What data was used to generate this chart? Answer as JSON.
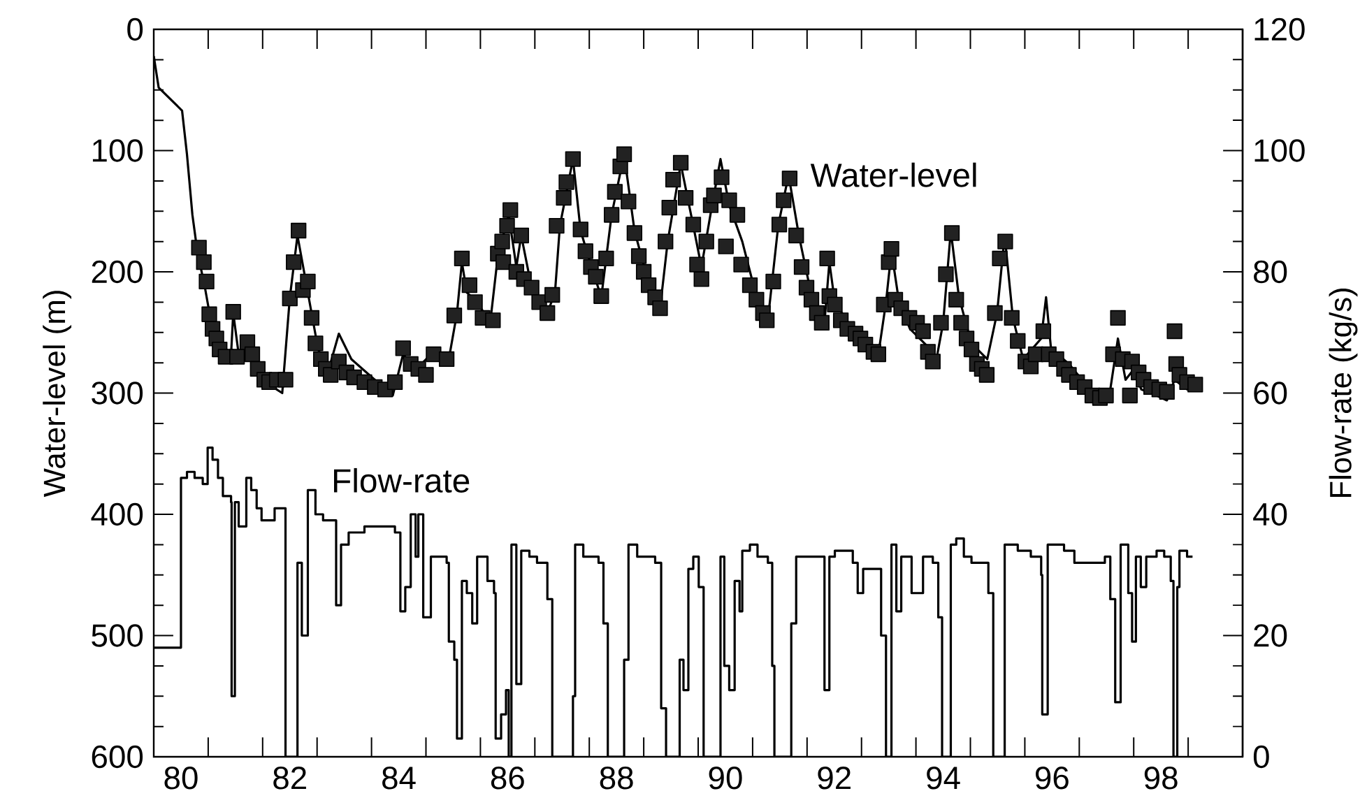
{
  "chart_data": {
    "type": "line",
    "xlabel": null,
    "ylabel": "Water-level (m)",
    "y2label": "Flow-rate (kg/s)",
    "annotations": [
      "Water-level",
      "Flow-rate"
    ],
    "xlim": [
      80,
      100
    ],
    "xticks": [
      {
        "value": 80.5,
        "label": "80"
      },
      {
        "value": 82.5,
        "label": "82"
      },
      {
        "value": 84.5,
        "label": "84"
      },
      {
        "value": 86.5,
        "label": "86"
      },
      {
        "value": 88.5,
        "label": "88"
      },
      {
        "value": 90.5,
        "label": "90"
      },
      {
        "value": 92.5,
        "label": "92"
      },
      {
        "value": 94.5,
        "label": "94"
      },
      {
        "value": 96.5,
        "label": "96"
      },
      {
        "value": 98.5,
        "label": "98"
      },
      {
        "value": 80,
        "label": null
      },
      {
        "value": 81,
        "label": null
      },
      {
        "value": 82,
        "label": null
      },
      {
        "value": 83,
        "label": null
      },
      {
        "value": 84,
        "label": null
      },
      {
        "value": 85,
        "label": null
      },
      {
        "value": 86,
        "label": null
      },
      {
        "value": 87,
        "label": null
      },
      {
        "value": 88,
        "label": null
      },
      {
        "value": 89,
        "label": null
      },
      {
        "value": 90,
        "label": null
      },
      {
        "value": 91,
        "label": null
      },
      {
        "value": 92,
        "label": null
      },
      {
        "value": 93,
        "label": null
      },
      {
        "value": 94,
        "label": null
      },
      {
        "value": 95,
        "label": null
      },
      {
        "value": 96,
        "label": null
      },
      {
        "value": 97,
        "label": null
      },
      {
        "value": 98,
        "label": null
      },
      {
        "value": 99,
        "label": null
      },
      {
        "value": 100,
        "label": null
      }
    ],
    "ylim": [
      600,
      0
    ],
    "yticks": [
      0,
      100,
      200,
      300,
      400,
      500,
      600
    ],
    "y2lim": [
      0,
      120
    ],
    "y2ticks": [
      0,
      20,
      40,
      60,
      80,
      100,
      120
    ],
    "series": [
      {
        "color": "#000000",
        "x": [
          80.0,
          80.09,
          80.52,
          80.61,
          80.71,
          80.8,
          80.94,
          81.04,
          81.23,
          81.42,
          81.46,
          81.56,
          81.79,
          81.98,
          82.36,
          82.5,
          82.64,
          82.83,
          83.02,
          83.21,
          83.4,
          83.63,
          84.06,
          84.39,
          84.58,
          84.81,
          85.09,
          85.42,
          85.57,
          85.66,
          85.75,
          85.94,
          86.18,
          86.32,
          86.52,
          86.66,
          86.75,
          86.94,
          87.23,
          87.37,
          87.46,
          87.7,
          87.84,
          87.98,
          88.22,
          88.41,
          88.64,
          88.83,
          89.11,
          89.3,
          89.44,
          89.68,
          89.91,
          90.06,
          90.24,
          90.41,
          90.57,
          90.81,
          91.05,
          91.28,
          91.47,
          91.66,
          91.85,
          92.13,
          92.32,
          92.41,
          92.51,
          92.89,
          93.31,
          93.45,
          93.55,
          93.69,
          93.89,
          94.27,
          94.36,
          94.5,
          94.64,
          94.79,
          95.02,
          95.31,
          95.49,
          95.63,
          95.78,
          95.97,
          96.3,
          96.39,
          96.48,
          96.81,
          97.29,
          97.57,
          97.71,
          97.85,
          97.99,
          98.14,
          98.42,
          98.61,
          98.75,
          98.98,
          99.17
        ],
        "values": [
          22,
          48,
          67,
          103,
          153,
          183,
          213,
          238,
          259,
          268,
          234,
          268,
          272,
          289,
          300,
          221,
          170,
          217,
          264,
          281,
          251,
          272,
          289,
          302,
          268,
          281,
          268,
          272,
          234,
          192,
          217,
          225,
          242,
          187,
          153,
          196,
          170,
          213,
          234,
          217,
          162,
          107,
          166,
          187,
          221,
          153,
          103,
          166,
          213,
          230,
          175,
          111,
          162,
          196,
          149,
          107,
          145,
          175,
          217,
          240,
          162,
          120,
          170,
          230,
          242,
          192,
          225,
          251,
          268,
          225,
          183,
          225,
          247,
          264,
          276,
          242,
          166,
          221,
          259,
          272,
          234,
          170,
          238,
          272,
          255,
          221,
          263,
          276,
          302,
          297,
          255,
          289,
          281,
          297,
          302,
          306,
          289,
          297,
          295
        ]
      },
      {
        "type": "scatter",
        "color": "#222222",
        "marker": "square",
        "x": [
          80.83,
          80.92,
          80.97,
          81.02,
          81.08,
          81.15,
          81.21,
          81.32,
          81.46,
          81.53,
          81.72,
          81.81,
          81.91,
          82.03,
          82.12,
          82.26,
          82.42,
          82.5,
          82.57,
          82.66,
          82.74,
          82.83,
          82.9,
          82.97,
          83.07,
          83.16,
          83.25,
          83.4,
          83.54,
          83.68,
          83.87,
          84.06,
          84.25,
          84.43,
          84.58,
          84.72,
          84.86,
          85.0,
          85.14,
          85.38,
          85.52,
          85.66,
          85.8,
          85.9,
          86.04,
          86.23,
          86.32,
          86.4,
          86.42,
          86.49,
          86.55,
          86.66,
          86.75,
          86.8,
          86.94,
          87.08,
          87.23,
          87.32,
          87.4,
          87.53,
          87.58,
          87.7,
          87.84,
          87.93,
          88.03,
          88.12,
          88.22,
          88.31,
          88.41,
          88.47,
          88.57,
          88.64,
          88.72,
          88.83,
          88.91,
          89.0,
          89.09,
          89.21,
          89.3,
          89.4,
          89.47,
          89.54,
          89.68,
          89.77,
          89.91,
          89.98,
          90.06,
          90.15,
          90.23,
          90.29,
          90.43,
          90.51,
          90.57,
          90.72,
          90.79,
          90.95,
          91.07,
          91.19,
          91.26,
          91.38,
          91.49,
          91.57,
          91.68,
          91.8,
          91.9,
          91.99,
          92.08,
          92.18,
          92.27,
          92.37,
          92.41,
          92.51,
          92.62,
          92.74,
          92.89,
          92.98,
          93.07,
          93.22,
          93.31,
          93.41,
          93.5,
          93.55,
          93.62,
          93.73,
          93.88,
          94.02,
          94.13,
          94.22,
          94.31,
          94.46,
          94.55,
          94.66,
          94.74,
          94.83,
          94.93,
          95.02,
          95.12,
          95.21,
          95.3,
          95.45,
          95.54,
          95.64,
          95.76,
          95.87,
          96.01,
          96.11,
          96.2,
          96.34,
          96.44,
          96.58,
          96.72,
          96.81,
          96.96,
          97.1,
          97.24,
          97.38,
          97.49,
          97.62,
          97.71,
          97.8,
          97.93,
          97.97,
          98.09,
          98.18,
          98.32,
          98.47,
          98.61,
          98.75,
          98.78,
          98.84,
          98.98,
          99.13
        ],
        "values": [
          180,
          192,
          208,
          235,
          247,
          255,
          264,
          270,
          233,
          270,
          258,
          268,
          280,
          289,
          291,
          289,
          289,
          222,
          192,
          166,
          215,
          208,
          238,
          259,
          272,
          280,
          285,
          274,
          283,
          287,
          291,
          295,
          297,
          291,
          263,
          276,
          280,
          285,
          268,
          272,
          236,
          189,
          211,
          225,
          238,
          240,
          185,
          175,
          192,
          162,
          149,
          200,
          170,
          206,
          213,
          225,
          234,
          219,
          162,
          139,
          126,
          107,
          165,
          183,
          196,
          204,
          220,
          189,
          153,
          134,
          113,
          103,
          142,
          168,
          187,
          200,
          211,
          221,
          230,
          175,
          147,
          124,
          110,
          139,
          161,
          194,
          206,
          175,
          145,
          137,
          122,
          179,
          141,
          153,
          194,
          211,
          223,
          234,
          240,
          208,
          161,
          141,
          123,
          170,
          196,
          213,
          223,
          234,
          242,
          189,
          220,
          227,
          240,
          247,
          251,
          255,
          260,
          266,
          268,
          227,
          192,
          181,
          223,
          230,
          238,
          242,
          249,
          266,
          274,
          242,
          202,
          168,
          223,
          242,
          255,
          264,
          276,
          280,
          285,
          234,
          189,
          175,
          238,
          257,
          274,
          278,
          268,
          249,
          268,
          272,
          280,
          285,
          291,
          295,
          302,
          304,
          302,
          268,
          238,
          272,
          302,
          274,
          283,
          289,
          295,
          297,
          299,
          249,
          276,
          285,
          291,
          293
        ]
      },
      {
        "type": "step",
        "axis": "y2",
        "color": "#000000",
        "x": [
          80.0,
          80.5,
          80.61,
          80.75,
          80.9,
          80.99,
          81.08,
          81.18,
          81.27,
          81.42,
          81.43,
          81.49,
          81.56,
          81.7,
          81.79,
          81.89,
          81.98,
          82.22,
          82.42,
          82.64,
          82.72,
          82.83,
          82.97,
          83.11,
          83.35,
          83.44,
          83.58,
          83.87,
          84.15,
          84.43,
          84.53,
          84.62,
          84.72,
          84.81,
          84.86,
          84.95,
          85.09,
          85.38,
          85.42,
          85.52,
          85.57,
          85.66,
          85.75,
          85.85,
          85.94,
          86.13,
          86.25,
          86.28,
          86.38,
          86.47,
          86.52,
          86.57,
          86.66,
          86.75,
          86.9,
          87.04,
          87.23,
          87.32,
          87.7,
          87.74,
          87.89,
          88.17,
          88.26,
          88.34,
          88.64,
          88.72,
          88.88,
          89.21,
          89.32,
          89.41,
          89.66,
          89.73,
          89.82,
          89.91,
          90.01,
          90.1,
          90.41,
          90.48,
          90.57,
          90.67,
          90.76,
          90.81,
          90.95,
          91.09,
          91.28,
          91.36,
          91.4,
          91.71,
          91.8,
          92.32,
          92.41,
          92.51,
          92.84,
          92.93,
          93.03,
          93.36,
          93.45,
          93.55,
          93.64,
          93.73,
          93.92,
          94.13,
          94.31,
          94.41,
          94.48,
          94.64,
          94.74,
          94.88,
          95.02,
          95.33,
          95.42,
          95.63,
          95.87,
          96.11,
          96.3,
          96.32,
          96.42,
          96.72,
          96.91,
          97.47,
          97.57,
          97.66,
          97.76,
          97.9,
          97.97,
          98.04,
          98.13,
          98.23,
          98.42,
          98.56,
          98.68,
          98.73,
          98.8,
          98.84,
          98.98,
          99.08
        ],
        "values": [
          18,
          46,
          47,
          46,
          45,
          51,
          49,
          46,
          43,
          42,
          10,
          42,
          38,
          46,
          44,
          41,
          39,
          41,
          0,
          32,
          20,
          44,
          40,
          39,
          25,
          35,
          37,
          38,
          38,
          37,
          24,
          28,
          40,
          33,
          40,
          23,
          33,
          32,
          19,
          16,
          3,
          29,
          27,
          22,
          33,
          29,
          27,
          3,
          7,
          11,
          0,
          35,
          12,
          34,
          33,
          32,
          26,
          0,
          10,
          35,
          33,
          32,
          22,
          0,
          16,
          35,
          33,
          32,
          8,
          0,
          16,
          11,
          31,
          33,
          28,
          0,
          33,
          15,
          11,
          29,
          24,
          34,
          35,
          33,
          32,
          15,
          0,
          22,
          33,
          11,
          33,
          34,
          32,
          27,
          31,
          20,
          0,
          35,
          24,
          33,
          27,
          33,
          32,
          23,
          0,
          35,
          36,
          33,
          32,
          27,
          0,
          35,
          34,
          33,
          30,
          7,
          35,
          34,
          32,
          33,
          26,
          9,
          35,
          27,
          19,
          33,
          28,
          33,
          34,
          33,
          29,
          0,
          28,
          34,
          33,
          33
        ]
      }
    ]
  }
}
